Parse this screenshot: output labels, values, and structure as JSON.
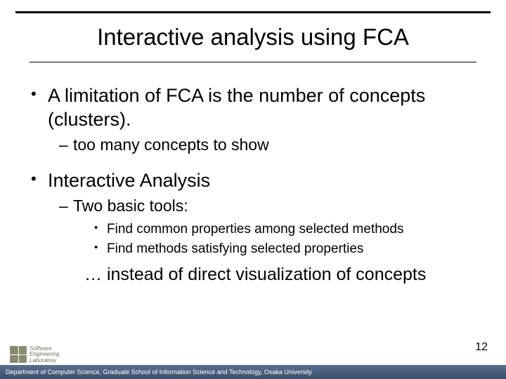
{
  "colors": {
    "text": "#000000",
    "footer_bg_top": "#5a7090",
    "footer_bg_bottom": "#3a4f6b",
    "footer_text": "#ffffff",
    "logo": "#8a8a70",
    "background": "#ffffff"
  },
  "slide": {
    "title": "Interactive analysis using FCA",
    "bullets": {
      "b1": "A limitation of FCA is the number of concepts  (clusters).",
      "b1a": "too many concepts to show",
      "b2": "Interactive Analysis",
      "b2a": "Two basic tools:",
      "b2a1": "Find common properties among selected methods",
      "b2a2": "Find methods satisfying selected properties",
      "tail": "… instead of direct visualization of concepts"
    },
    "page_number": "12"
  },
  "footer": {
    "text": "Department of Computer Science, Graduate School of Information Science and Technology, Osaka University"
  },
  "logo": {
    "line1": "Software",
    "line2": "Engineering",
    "line3": "Laboratory"
  }
}
